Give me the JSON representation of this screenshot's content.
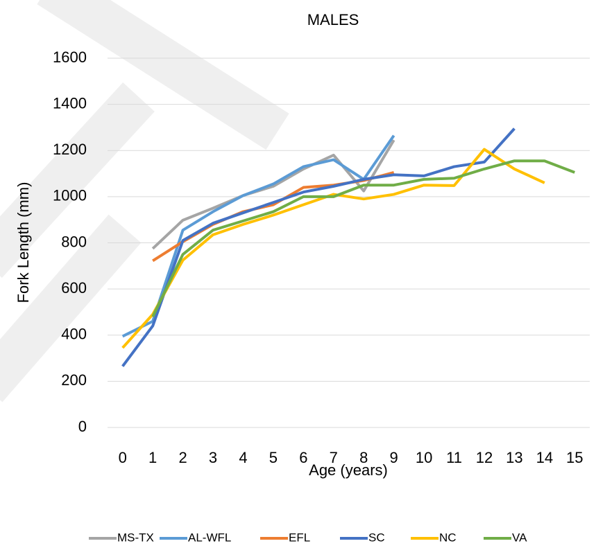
{
  "chart_data": {
    "type": "line",
    "title": "MALES",
    "x_label": "Age (years)",
    "y_label": "Fork Length (mm)",
    "x": [
      0,
      1,
      2,
      3,
      4,
      5,
      6,
      7,
      8,
      9,
      10,
      11,
      12,
      13,
      14,
      15
    ],
    "xlim": [
      -0.5,
      15.5
    ],
    "xticks": [
      0,
      1,
      2,
      3,
      4,
      5,
      6,
      7,
      8,
      9,
      10,
      11,
      12,
      13,
      14,
      15
    ],
    "ylim": [
      0,
      1600
    ],
    "yticks": [
      0,
      200,
      400,
      600,
      800,
      1000,
      1200,
      1400,
      1600
    ],
    "grid": true,
    "legend": "bottom",
    "series": [
      {
        "name": "MS-TX",
        "color": "#a5a5a5",
        "values": [
          null,
          775,
          898,
          950,
          1005,
          1045,
          1120,
          1180,
          1025,
          1245,
          null,
          null,
          null,
          null,
          null,
          null
        ]
      },
      {
        "name": "AL-WFL",
        "color": "#5b9bd5",
        "values": [
          395,
          460,
          855,
          935,
          1005,
          1055,
          1130,
          1160,
          1075,
          1265,
          null,
          null,
          null,
          null,
          null,
          null
        ]
      },
      {
        "name": "EFL",
        "color": "#ed7d31",
        "values": [
          null,
          722,
          805,
          880,
          935,
          965,
          1040,
          1050,
          1070,
          1105,
          null,
          null,
          null,
          null,
          null,
          null
        ]
      },
      {
        "name": "SC",
        "color": "#4472c4",
        "values": [
          265,
          440,
          810,
          885,
          930,
          975,
          1020,
          1045,
          1075,
          1095,
          1090,
          1130,
          1150,
          1295,
          null,
          null
        ]
      },
      {
        "name": "NC",
        "color": "#ffc000",
        "values": [
          345,
          490,
          725,
          835,
          880,
          920,
          965,
          1010,
          990,
          1010,
          1050,
          1048,
          1205,
          1120,
          1060,
          null
        ]
      },
      {
        "name": "VA",
        "color": "#70ad47",
        "values": [
          null,
          480,
          750,
          855,
          895,
          935,
          1000,
          1000,
          1050,
          1050,
          1075,
          1080,
          1120,
          1155,
          1155,
          1105
        ]
      }
    ]
  }
}
